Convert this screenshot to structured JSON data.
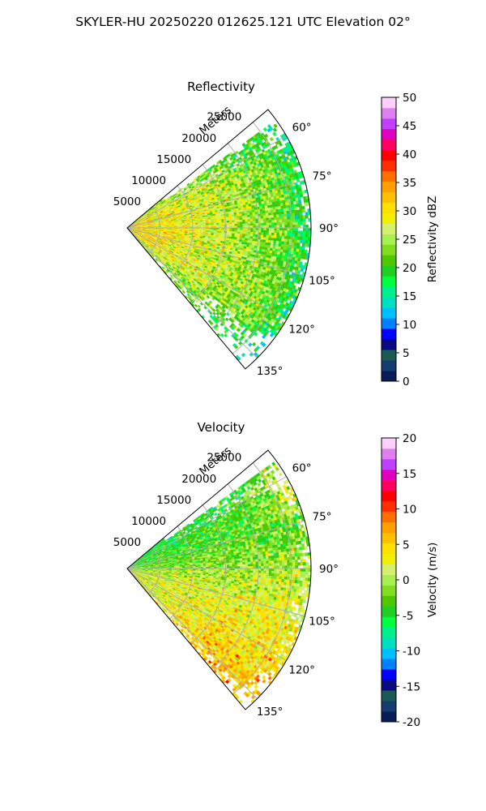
{
  "figure_title": "SKYLER-HU  20250220  012625.121 UTC Elevation 02°",
  "chart_data": [
    {
      "type": "heatmap",
      "title": "Reflectivity",
      "radial_label": "Meters",
      "radial_ticks": [
        "5000",
        "10000",
        "15000",
        "20000",
        "25000"
      ],
      "radial_tick_values": [
        5000,
        10000,
        15000,
        20000,
        25000
      ],
      "r_max": 28000,
      "azimuth_range_deg": [
        50,
        140
      ],
      "azimuth_ticks": [
        "60°",
        "75°",
        "90°",
        "105°",
        "120°",
        "135°"
      ],
      "azimuth_tick_values": [
        60,
        75,
        90,
        105,
        120,
        135
      ],
      "grid": true,
      "colorbar": {
        "label": "Reflectivity dBZ",
        "range": [
          0,
          50
        ],
        "ticks": [
          "0",
          "5",
          "10",
          "15",
          "20",
          "25",
          "30",
          "35",
          "40",
          "45",
          "50"
        ],
        "tick_values": [
          0,
          5,
          10,
          15,
          20,
          25,
          30,
          35,
          40,
          45,
          50
        ],
        "colors": [
          "#081d58",
          "#123d6e",
          "#1a5a55",
          "#0a0a80",
          "#0000ff",
          "#0080ff",
          "#00c0ff",
          "#00e0c0",
          "#00f090",
          "#00ff40",
          "#20d020",
          "#50c800",
          "#80dd20",
          "#a8f050",
          "#d8f070",
          "#f0f000",
          "#ffe000",
          "#ffc000",
          "#ffa000",
          "#ff7000",
          "#ff3000",
          "#ff0000",
          "#ff0060",
          "#e000c0",
          "#c040ff",
          "#e080f0",
          "#ffd0ff"
        ]
      },
      "field": {
        "near_range_dbz": 31,
        "mid_range_dbz": 27,
        "far_range_dbz": 21,
        "far_edge_dbz": 18,
        "edge_azimuth_dbz": 21
      }
    },
    {
      "type": "heatmap",
      "title": "Velocity",
      "radial_label": "Meters",
      "radial_ticks": [
        "5000",
        "10000",
        "15000",
        "20000",
        "25000"
      ],
      "radial_tick_values": [
        5000,
        10000,
        15000,
        20000,
        25000
      ],
      "r_max": 28000,
      "azimuth_range_deg": [
        50,
        140
      ],
      "azimuth_ticks": [
        "60°",
        "75°",
        "90°",
        "105°",
        "120°",
        "135°"
      ],
      "azimuth_tick_values": [
        60,
        75,
        90,
        105,
        120,
        135
      ],
      "grid": true,
      "colorbar": {
        "label": "Velocity (m/s)",
        "range": [
          -20,
          20
        ],
        "ticks": [
          "-20",
          "-15",
          "-10",
          "-5",
          "0",
          "5",
          "10",
          "15",
          "20"
        ],
        "tick_values": [
          -20,
          -15,
          -10,
          -5,
          0,
          5,
          10,
          15,
          20
        ],
        "colors": [
          "#081d58",
          "#123d6e",
          "#1a5a55",
          "#0a0a80",
          "#0000ff",
          "#0080ff",
          "#00c0ff",
          "#00e0c0",
          "#00f090",
          "#00ff40",
          "#20d020",
          "#50c800",
          "#80dd20",
          "#a8f050",
          "#d8f070",
          "#f0f000",
          "#ffe000",
          "#ffc000",
          "#ffa000",
          "#ff7000",
          "#ff3000",
          "#ff0000",
          "#ff0060",
          "#e000c0",
          "#c040ff",
          "#e080f0",
          "#ffd0ff"
        ]
      },
      "field": {
        "low_azimuth_near_ms": -6,
        "center_ms": 0,
        "high_azimuth_far_ms": 6
      }
    }
  ]
}
